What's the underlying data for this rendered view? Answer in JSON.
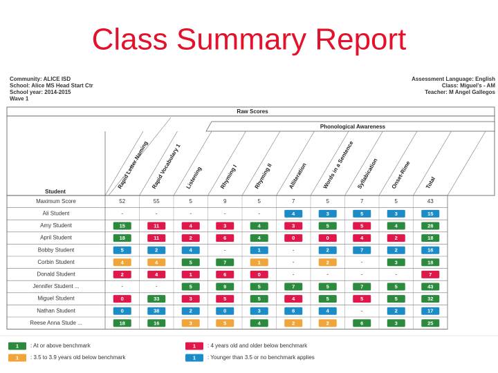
{
  "title": "Class Summary Report",
  "info": {
    "left": [
      "Community: ALICE ISD",
      "School: Alice MS Head Start Ctr",
      "School year: 2014-2015",
      "Wave 1"
    ],
    "right": [
      "Assessment Language: English",
      "Class: Miguel's - AM",
      "Teacher: M Angel Gallegos"
    ]
  },
  "table": {
    "caption": "Raw Scores",
    "group": "Phonological Awareness",
    "student_header": "Student",
    "columns": [
      "Rapid Letter Naming",
      "Rapid Vocabulary 1",
      "Listening",
      "Rhyming I",
      "Rhyming II",
      "Alliteration",
      "Words in a Sentence",
      "Syllabication",
      "Onset-Rime",
      "Total"
    ],
    "max_label": "Maximum Score",
    "max_scores": [
      "52",
      "55",
      "5",
      "9",
      "5",
      "7",
      "5",
      "7",
      "5",
      "43"
    ],
    "rows": [
      {
        "name": "Ali Student",
        "cells": [
          {
            "text": "-"
          },
          {
            "text": "-"
          },
          {
            "text": "-"
          },
          {
            "text": "-"
          },
          {
            "text": "-"
          },
          {
            "text": "4",
            "level": "blue"
          },
          {
            "text": "3",
            "level": "blue"
          },
          {
            "text": "5",
            "level": "blue"
          },
          {
            "text": "3",
            "level": "blue"
          },
          {
            "text": "15",
            "level": "blue"
          }
        ]
      },
      {
        "name": "Amy Student",
        "cells": [
          {
            "text": "15",
            "level": "green"
          },
          {
            "text": "11",
            "level": "red"
          },
          {
            "text": "4",
            "level": "red"
          },
          {
            "text": "3",
            "level": "red"
          },
          {
            "text": "4",
            "level": "green"
          },
          {
            "text": "3",
            "level": "red"
          },
          {
            "text": "5",
            "level": "green"
          },
          {
            "text": "5",
            "level": "red"
          },
          {
            "text": "4",
            "level": "green"
          },
          {
            "text": "28",
            "level": "green"
          }
        ]
      },
      {
        "name": "April Student",
        "cells": [
          {
            "text": "18",
            "level": "green"
          },
          {
            "text": "11",
            "level": "red"
          },
          {
            "text": "2",
            "level": "red"
          },
          {
            "text": "6",
            "level": "red"
          },
          {
            "text": "4",
            "level": "green"
          },
          {
            "text": "0",
            "level": "red"
          },
          {
            "text": "0",
            "level": "red"
          },
          {
            "text": "4",
            "level": "red"
          },
          {
            "text": "2",
            "level": "red"
          },
          {
            "text": "18",
            "level": "green"
          }
        ]
      },
      {
        "name": "Bobby Student",
        "cells": [
          {
            "text": "5",
            "level": "blue"
          },
          {
            "text": "2",
            "level": "blue"
          },
          {
            "text": "4",
            "level": "blue"
          },
          {
            "text": "-"
          },
          {
            "text": "1",
            "level": "blue"
          },
          {
            "text": "-"
          },
          {
            "text": "2",
            "level": "blue"
          },
          {
            "text": "7",
            "level": "blue"
          },
          {
            "text": "2",
            "level": "blue"
          },
          {
            "text": "16",
            "level": "blue"
          }
        ]
      },
      {
        "name": "Corbin Student",
        "cells": [
          {
            "text": "4",
            "level": "orange"
          },
          {
            "text": "4",
            "level": "orange"
          },
          {
            "text": "5",
            "level": "green"
          },
          {
            "text": "7",
            "level": "green"
          },
          {
            "text": "1",
            "level": "orange"
          },
          {
            "text": "-"
          },
          {
            "text": "2",
            "level": "orange"
          },
          {
            "text": "-"
          },
          {
            "text": "3",
            "level": "green"
          },
          {
            "text": "18",
            "level": "green"
          }
        ]
      },
      {
        "name": "Donald Student",
        "cells": [
          {
            "text": "2",
            "level": "red"
          },
          {
            "text": "4",
            "level": "red"
          },
          {
            "text": "1",
            "level": "red"
          },
          {
            "text": "6",
            "level": "red"
          },
          {
            "text": "0",
            "level": "red"
          },
          {
            "text": "-"
          },
          {
            "text": "-"
          },
          {
            "text": "-"
          },
          {
            "text": "-"
          },
          {
            "text": "7",
            "level": "red"
          }
        ]
      },
      {
        "name": "Jennifer Student ...",
        "cells": [
          {
            "text": "-"
          },
          {
            "text": "-"
          },
          {
            "text": "5",
            "level": "green"
          },
          {
            "text": "9",
            "level": "green"
          },
          {
            "text": "5",
            "level": "green"
          },
          {
            "text": "7",
            "level": "green"
          },
          {
            "text": "5",
            "level": "green"
          },
          {
            "text": "7",
            "level": "green"
          },
          {
            "text": "5",
            "level": "green"
          },
          {
            "text": "43",
            "level": "green"
          }
        ]
      },
      {
        "name": "Miguel Student",
        "cells": [
          {
            "text": "0",
            "level": "red"
          },
          {
            "text": "33",
            "level": "green"
          },
          {
            "text": "3",
            "level": "red"
          },
          {
            "text": "5",
            "level": "red"
          },
          {
            "text": "5",
            "level": "green"
          },
          {
            "text": "4",
            "level": "red"
          },
          {
            "text": "5",
            "level": "green"
          },
          {
            "text": "5",
            "level": "red"
          },
          {
            "text": "5",
            "level": "green"
          },
          {
            "text": "32",
            "level": "green"
          }
        ]
      },
      {
        "name": "Nathan Student",
        "cells": [
          {
            "text": "0",
            "level": "blue"
          },
          {
            "text": "38",
            "level": "blue"
          },
          {
            "text": "2",
            "level": "blue"
          },
          {
            "text": "0",
            "level": "blue"
          },
          {
            "text": "3",
            "level": "blue"
          },
          {
            "text": "6",
            "level": "blue"
          },
          {
            "text": "4",
            "level": "blue"
          },
          {
            "text": "-"
          },
          {
            "text": "2",
            "level": "blue"
          },
          {
            "text": "17",
            "level": "blue"
          }
        ]
      },
      {
        "name": "Reese Anna Stude ...",
        "cells": [
          {
            "text": "18",
            "level": "green"
          },
          {
            "text": "16",
            "level": "green"
          },
          {
            "text": "3",
            "level": "orange"
          },
          {
            "text": "5",
            "level": "orange"
          },
          {
            "text": "4",
            "level": "green"
          },
          {
            "text": "2",
            "level": "orange"
          },
          {
            "text": "2",
            "level": "orange"
          },
          {
            "text": "6",
            "level": "green"
          },
          {
            "text": "3",
            "level": "green"
          },
          {
            "text": "25",
            "level": "green"
          }
        ]
      }
    ]
  },
  "level_colors": {
    "green": "#2b8a3e",
    "red": "#e0174a",
    "orange": "#f0a53a",
    "blue": "#1c8cc8"
  },
  "legend": [
    {
      "text": "1",
      "level": "green",
      "label": ": At or above benchmark"
    },
    {
      "text": "1",
      "level": "orange",
      "label": ": 3.5 to 3.9 years old below benchmark"
    },
    {
      "text": "1",
      "level": "red",
      "label": ": 4 years old and older below benchmark"
    },
    {
      "text": "1",
      "level": "blue",
      "label": ": Younger than 3.5 or no benchmark applies"
    }
  ]
}
